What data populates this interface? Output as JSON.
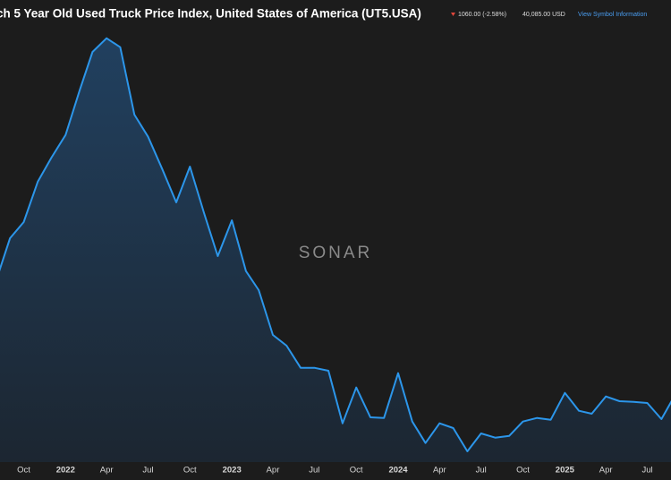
{
  "header": {
    "title": "ch 5 Year Old Used Truck Price Index, United States of America (UT5.USA)",
    "change": "1060.00 (-2.58%)",
    "price": "40,085.00 USD",
    "link": "View Symbol Information"
  },
  "chart_data": {
    "type": "area",
    "watermark": "SONAR",
    "color": "#2c96ea",
    "x": [
      "2021-08",
      "2021-09",
      "2021-10",
      "2021-11",
      "2021-12",
      "2022-01",
      "2022-02",
      "2022-03",
      "2022-04",
      "2022-05",
      "2022-06",
      "2022-07",
      "2022-08",
      "2022-09",
      "2022-10",
      "2022-11",
      "2022-12",
      "2023-01",
      "2023-02",
      "2023-03",
      "2023-04",
      "2023-05",
      "2023-06",
      "2023-07",
      "2023-08",
      "2023-09",
      "2023-10",
      "2023-11",
      "2023-12",
      "2024-01",
      "2024-02",
      "2024-03",
      "2024-04",
      "2024-05",
      "2024-06",
      "2024-07",
      "2024-08",
      "2024-09",
      "2024-10",
      "2024-11",
      "2024-12",
      "2025-01",
      "2025-02",
      "2025-03",
      "2025-04",
      "2025-05",
      "2025-06",
      "2025-07",
      "2025-08",
      "2025-09"
    ],
    "values": [
      60900,
      68100,
      70800,
      77600,
      81600,
      85400,
      92900,
      99300,
      101600,
      100100,
      88800,
      85100,
      79700,
      74100,
      80100,
      72300,
      65100,
      71100,
      62600,
      59400,
      51900,
      50100,
      46400,
      46400,
      45900,
      37100,
      43100,
      38100,
      38000,
      45500,
      37400,
      33800,
      37100,
      36300,
      32400,
      35400,
      34700,
      35000,
      37400,
      38000,
      37700,
      42200,
      39200,
      38700,
      41600,
      40800,
      40700,
      40500,
      37800,
      42000
    ],
    "xlim": [
      "2021-08-10",
      "2025-08-22"
    ],
    "ylim": [
      30000,
      108000
    ],
    "xticks": [
      {
        "value": "2021-10",
        "label": "Oct"
      },
      {
        "value": "2022-01",
        "label": "2022"
      },
      {
        "value": "2022-04",
        "label": "Apr"
      },
      {
        "value": "2022-07",
        "label": "Jul"
      },
      {
        "value": "2022-10",
        "label": "Oct"
      },
      {
        "value": "2023-01",
        "label": "2023"
      },
      {
        "value": "2023-04",
        "label": "Apr"
      },
      {
        "value": "2023-07",
        "label": "Jul"
      },
      {
        "value": "2023-10",
        "label": "Oct"
      },
      {
        "value": "2024-01",
        "label": "2024"
      },
      {
        "value": "2024-04",
        "label": "Apr"
      },
      {
        "value": "2024-07",
        "label": "Jul"
      },
      {
        "value": "2024-10",
        "label": "Oct"
      },
      {
        "value": "2025-01",
        "label": "2025"
      },
      {
        "value": "2025-04",
        "label": "Apr"
      },
      {
        "value": "2025-07",
        "label": "Jul"
      }
    ]
  }
}
